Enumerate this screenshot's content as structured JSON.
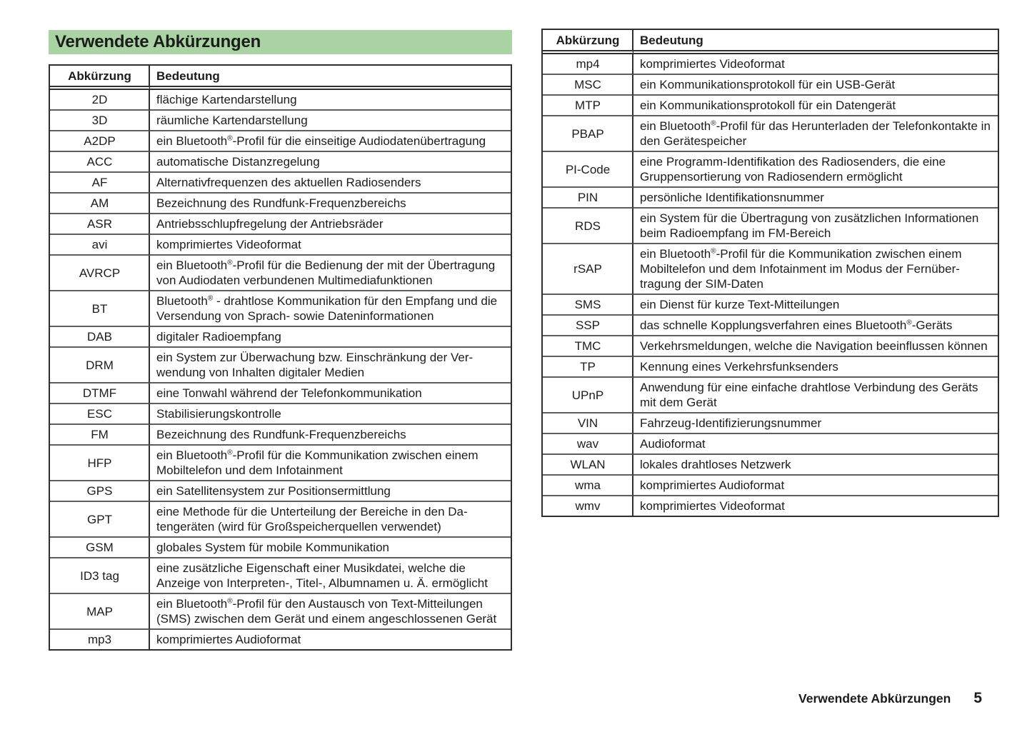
{
  "page": {
    "title": "Verwendete Abkürzungen",
    "footer_section": "Verwendete Abkürzungen",
    "footer_page": "5"
  },
  "colors": {
    "title_bg": "#a9d3a3",
    "text": "#1c1c1c",
    "border_dark": "#2f2f2f",
    "row_divider": "#5e5e5e"
  },
  "tables": {
    "headers": {
      "abbr": "Abkürzung",
      "meaning": "Bedeutung"
    },
    "left_rows": [
      {
        "abbr": "2D",
        "meaning": "flächige Kartendarstellung"
      },
      {
        "abbr": "3D",
        "meaning": "räumliche Kartendarstellung"
      },
      {
        "abbr": "A2DP",
        "meaning": "ein Bluetooth®-Profil für die einseitige Audiodatenübertra­gung"
      },
      {
        "abbr": "ACC",
        "meaning": "automatische Distanzregelung"
      },
      {
        "abbr": "AF",
        "meaning": "Alternativfrequenzen des aktuellen Radiosenders"
      },
      {
        "abbr": "AM",
        "meaning": "Bezeichnung des Rundfunk-Frequenzbereichs"
      },
      {
        "abbr": "ASR",
        "meaning": "Antriebsschlupfregelung der Antriebsräder"
      },
      {
        "abbr": "avi",
        "meaning": "komprimiertes Videoformat"
      },
      {
        "abbr": "AVRCP",
        "meaning": "ein Bluetooth®-Profil für die Bedienung der mit der Übertra­gung von Audiodaten verbundenen Multimediafunktionen"
      },
      {
        "abbr": "BT",
        "meaning": "Bluetooth® - drahtlose Kommunikation für den Empfang und die Versendung von Sprach- sowie Dateninformationen"
      },
      {
        "abbr": "DAB",
        "meaning": "digitaler Radioempfang"
      },
      {
        "abbr": "DRM",
        "meaning": "ein System zur Überwachung bzw. Einschränkung der Ver­wendung von Inhalten digitaler Medien"
      },
      {
        "abbr": "DTMF",
        "meaning": "eine Tonwahl während der Telefonkommunikation"
      },
      {
        "abbr": "ESC",
        "meaning": "Stabilisierungskontrolle"
      },
      {
        "abbr": "FM",
        "meaning": "Bezeichnung des Rundfunk-Frequenzbereichs"
      },
      {
        "abbr": "HFP",
        "meaning": "ein Bluetooth®-Profil für die Kommunikation zwischen einem Mobiltelefon und dem Infotainment"
      },
      {
        "abbr": "GPS",
        "meaning": "ein Satellitensystem zur Positionsermittlung"
      },
      {
        "abbr": "GPT",
        "meaning": "eine Methode für die Unterteilung der Bereiche in den Da­tengeräten (wird für Großspeicherquellen verwendet)"
      },
      {
        "abbr": "GSM",
        "meaning": "globales System für mobile Kommunikation"
      },
      {
        "abbr": "ID3 tag",
        "meaning": "eine zusätzliche Eigenschaft einer Musikdatei, welche die Anzeige von Interpreten-, Titel-, Albumnamen u. Ä. ermög­licht"
      },
      {
        "abbr": "MAP",
        "meaning": "ein Bluetooth®-Profil für den Austausch von Text-Mitteilun­gen (SMS) zwischen dem Gerät und einem angeschlossenen Gerät"
      },
      {
        "abbr": "mp3",
        "meaning": "komprimiertes Audioformat"
      }
    ],
    "right_rows": [
      {
        "abbr": "mp4",
        "meaning": "komprimiertes Videoformat"
      },
      {
        "abbr": "MSC",
        "meaning": "ein Kommunikationsprotokoll für ein USB-Gerät"
      },
      {
        "abbr": "MTP",
        "meaning": "ein Kommunikationsprotokoll für ein Datengerät"
      },
      {
        "abbr": "PBAP",
        "meaning": "ein Bluetooth®-Profil für das Herunterladen der Telefon­kontakte in den Gerätespeicher"
      },
      {
        "abbr": "PI-Code",
        "meaning": "eine Programm-Identifikation des Radiosenders, die eine Gruppensortierung von Radiosendern ermöglicht"
      },
      {
        "abbr": "PIN",
        "meaning": "persönliche Identifikationsnummer"
      },
      {
        "abbr": "RDS",
        "meaning": "ein System für die Übertragung von zusätzlichen Informatio­nen beim Radioempfang im FM-Bereich"
      },
      {
        "abbr": "rSAP",
        "meaning": "ein Bluetooth®-Profil für die Kommunikation zwischen einem Mobiltelefon und dem Infotainment im Modus der Fernüber­tragung der SIM-Daten"
      },
      {
        "abbr": "SMS",
        "meaning": "ein Dienst für kurze Text-Mitteilungen"
      },
      {
        "abbr": "SSP",
        "meaning": "das schnelle Kopplungsverfahren eines Bluetooth®-Geräts"
      },
      {
        "abbr": "TMC",
        "meaning": "Verkehrsmeldungen, welche die Navigation beeinflussen können"
      },
      {
        "abbr": "TP",
        "meaning": "Kennung eines Verkehrsfunksenders"
      },
      {
        "abbr": "UPnP",
        "meaning": "Anwendung für eine einfache drahtlose Verbindung des Ge­räts mit dem Gerät"
      },
      {
        "abbr": "VIN",
        "meaning": "Fahrzeug-Identifizierungsnummer"
      },
      {
        "abbr": "wav",
        "meaning": "Audioformat"
      },
      {
        "abbr": "WLAN",
        "meaning": "lokales drahtloses Netzwerk"
      },
      {
        "abbr": "wma",
        "meaning": "komprimiertes Audioformat"
      },
      {
        "abbr": "wmv",
        "meaning": "komprimiertes Videoformat"
      }
    ]
  }
}
